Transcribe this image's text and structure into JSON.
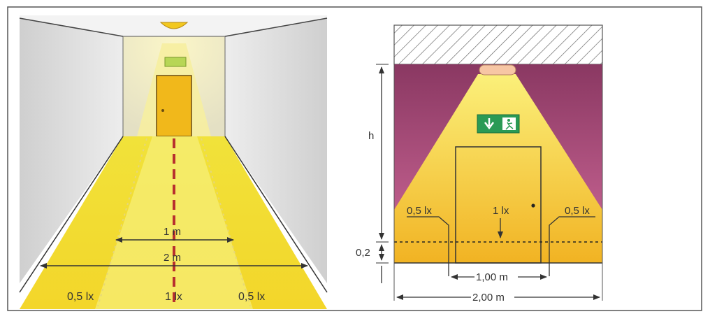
{
  "corridor": {
    "label_1m": "1 m",
    "label_2m": "2 m",
    "label_left": "0,5 lx",
    "label_center": "1 lx",
    "label_right": "0,5 lx"
  },
  "elevation": {
    "label_h": "h",
    "label_02": "0,2",
    "label_left": "0,5 lx",
    "label_center": "1 lx",
    "label_right": "0,5 lx",
    "label_100m": "1,00 m",
    "label_200m": "2,00 m"
  },
  "colors": {
    "light_yellow": "#f4ec38",
    "door_orange": "#f0b81c",
    "wall_magenta": "#8e3d66",
    "dash_red": "#b8302e",
    "exit_sign_green": "#2a9a55"
  },
  "icons": {
    "exit_sign": "running-man-exit-sign-icon",
    "ceiling_light": "ceiling-lamp-icon"
  }
}
